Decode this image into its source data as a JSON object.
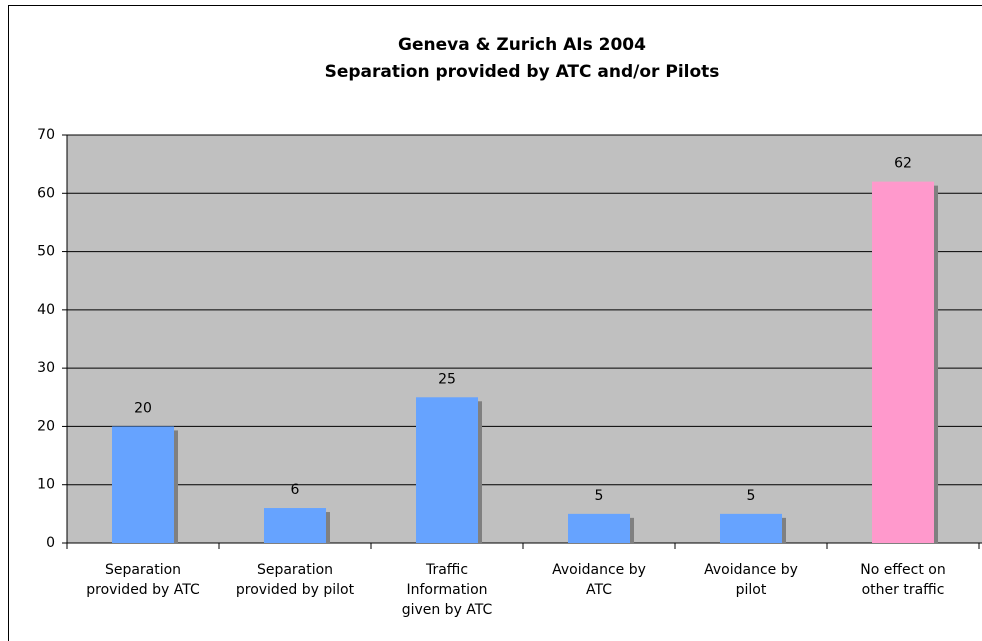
{
  "chart_data": {
    "type": "bar",
    "title": "Geneva & Zurich AIs 2004",
    "subtitle": "Separation provided by ATC and/or Pilots",
    "categories": [
      "Separation provided by ATC",
      "Separation provided by pilot",
      "Traffic Information given by ATC",
      "Avoidance by ATC",
      "Avoidance by pilot",
      "No effect on other traffic"
    ],
    "values": [
      20,
      6,
      25,
      5,
      5,
      62
    ],
    "colors": [
      "#66a3ff",
      "#66a3ff",
      "#66a3ff",
      "#66a3ff",
      "#66a3ff",
      "#ff99cc"
    ],
    "ylim": [
      0,
      70
    ],
    "yticks": [
      0,
      10,
      20,
      30,
      40,
      50,
      60,
      70
    ],
    "grid": true
  }
}
